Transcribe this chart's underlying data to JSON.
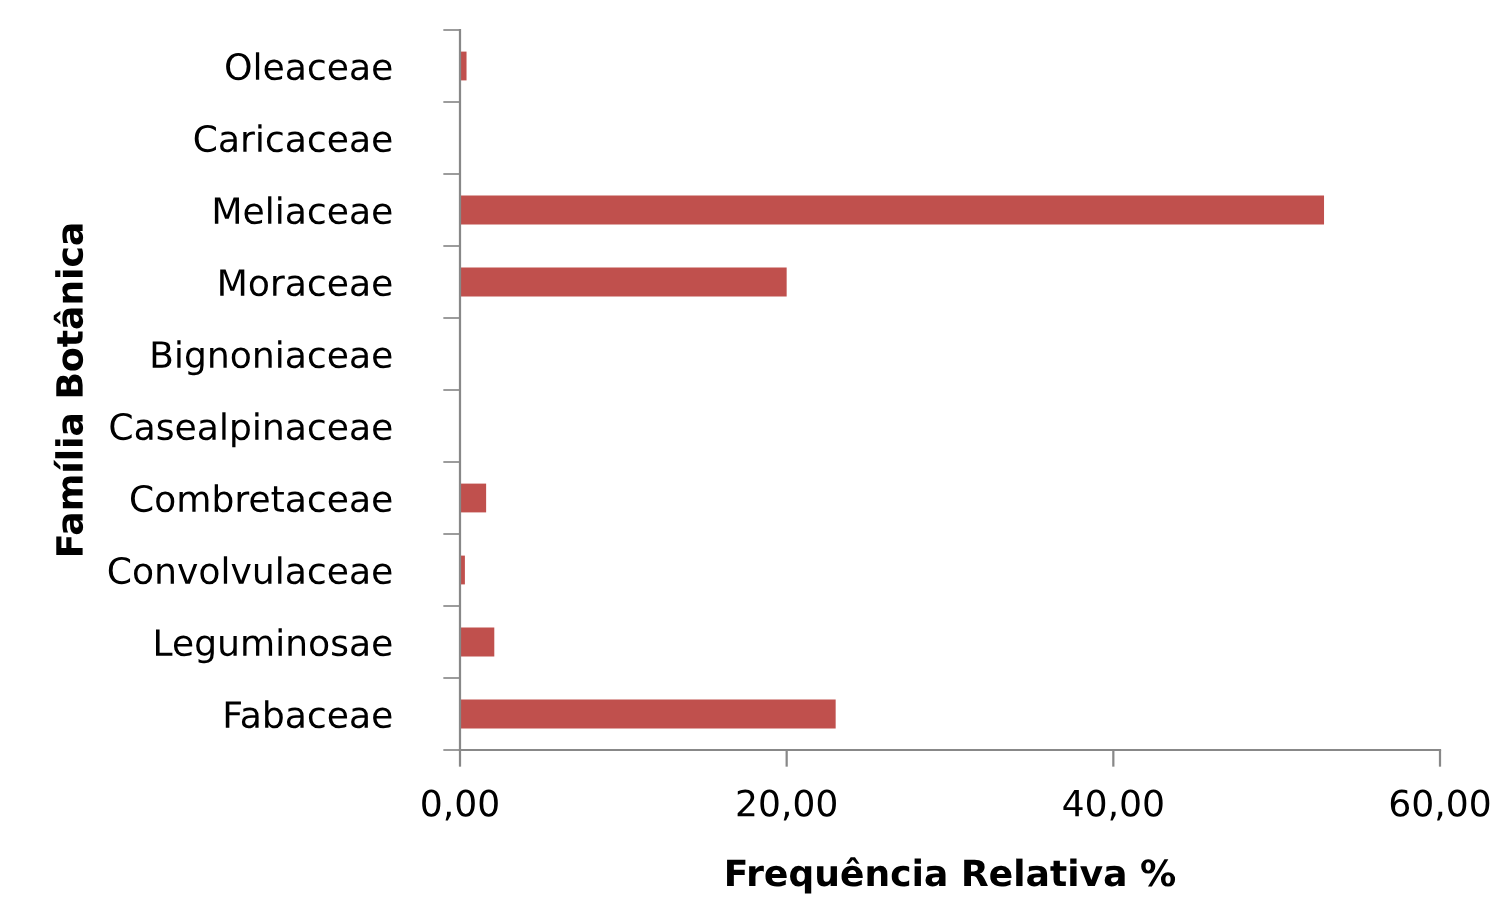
{
  "chart_data": {
    "type": "bar",
    "orientation": "horizontal",
    "xlabel": "Frequência Relativa %",
    "ylabel": "Família Botânica",
    "categories": [
      "Oleaceae",
      "Caricaceae",
      "Meliaceae",
      "Moraceae",
      "Bignoniaceae",
      "Casealpinaceae",
      "Combretaceae",
      "Convolvulaceae",
      "Leguminosae",
      "Fabaceae"
    ],
    "values": [
      0.4,
      0,
      52.9,
      20.0,
      0,
      0,
      1.6,
      0.3,
      2.1,
      23.0
    ],
    "color": "#c0504d",
    "xlim": [
      0,
      60
    ],
    "xticks": [
      {
        "value": 0,
        "label": "0,00"
      },
      {
        "value": 20,
        "label": "20,00"
      },
      {
        "value": 40,
        "label": "40,00"
      },
      {
        "value": 60,
        "label": "60,00"
      }
    ],
    "grid": false,
    "legend": false
  }
}
